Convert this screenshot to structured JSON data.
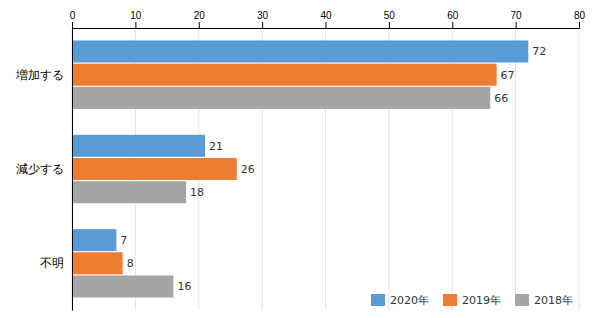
{
  "chart_data": {
    "type": "bar",
    "orientation": "horizontal",
    "categories": [
      "増加する",
      "減少する",
      "不明"
    ],
    "series": [
      {
        "name": "2020年",
        "color": "#5B9BD5",
        "values": [
          72,
          21,
          7
        ]
      },
      {
        "name": "2019年",
        "color": "#ED7D31",
        "values": [
          67,
          26,
          8
        ]
      },
      {
        "name": "2018年",
        "color": "#A5A5A5",
        "values": [
          66,
          18,
          16
        ]
      }
    ],
    "xlim": [
      0,
      80
    ],
    "xticks": [
      0,
      10,
      20,
      30,
      40,
      50,
      60,
      70,
      80
    ],
    "grid": true,
    "legend": "lower right",
    "data_labels": true
  }
}
